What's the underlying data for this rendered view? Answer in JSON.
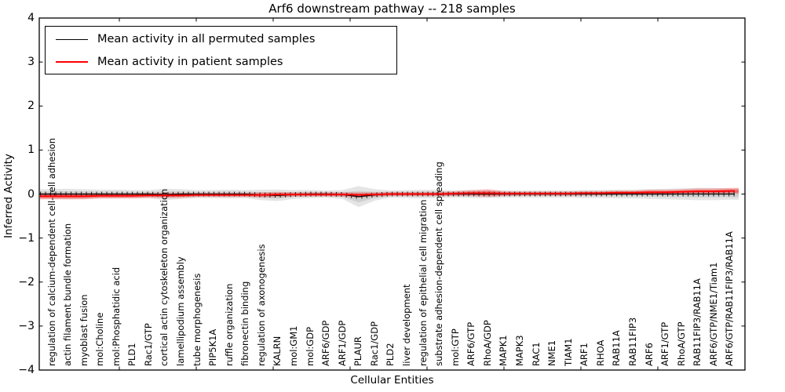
{
  "title": "Arf6 downstream pathway -- 218 samples",
  "legend": {
    "items": [
      {
        "label": "Mean activity in all permuted samples",
        "color": "#000000"
      },
      {
        "label": "Mean activity in patient samples",
        "color": "#ff0000"
      }
    ]
  },
  "axes": {
    "ylabel": "Inferred Activity",
    "xlabel": "Cellular Entities",
    "ytick_labels": [
      "4",
      "3",
      "2",
      "1",
      "0",
      "−1",
      "−2",
      "−3",
      "−4"
    ],
    "ytick_values": [
      4,
      3,
      2,
      1,
      0,
      -1,
      -2,
      -3,
      -4
    ]
  },
  "chart_data": {
    "type": "line",
    "title": "Arf6 downstream pathway -- 218 samples",
    "xlabel": "Cellular Entities",
    "ylabel": "Inferred Activity",
    "ylim": [
      -4,
      4
    ],
    "grid": false,
    "legend_position": "upper left",
    "categories": [
      "regulation of calcium-dependent cell-cell adhesion",
      "actin filament bundle formation",
      "myoblast fusion",
      "mol:Choline",
      "mol:Phosphatidic acid",
      "PLD1",
      "Rac1/GTP",
      "cortical actin cytoskeleton organization",
      "lamellipodium assembly",
      "tube morphogenesis",
      "PIP5K1A",
      "ruffle organization",
      "fibronectin binding",
      "regulation of axonogenesis",
      "KALRN",
      "mol:GM1",
      "mol:GDP",
      "ARF6/GDP",
      "ARF1/GDP",
      "PLAUR",
      "Rac1/GDP",
      "PLD2",
      "liver development",
      "regulation of epithelial cell migration",
      "substrate adhesion-dependent cell spreading",
      "mol:GTP",
      "ARF6/GTP",
      "RhoA/GDP",
      "MAPK1",
      "MAPK3",
      "RAC1",
      "NME1",
      "TIAM1",
      "ARF1",
      "RHOA",
      "RAB11A",
      "RAB11FIP3",
      "ARF6",
      "ARF1/GTP",
      "RhoA/GTP",
      "RAB11FIP3/RAB11A",
      "ARF6/GTP/NME1/Tiam1",
      "ARF6/GTP/RAB11FIP3/RAB11A"
    ],
    "series": [
      {
        "name": "Mean activity in all permuted samples",
        "color": "#000000",
        "values": [
          0,
          0,
          0,
          0,
          0,
          0,
          0,
          -0.01,
          0,
          0,
          0,
          0,
          0,
          -0.02,
          -0.03,
          -0.01,
          0,
          0,
          -0.01,
          -0.06,
          -0.02,
          0,
          0,
          0,
          0,
          0,
          0,
          0,
          0,
          0,
          0,
          0,
          0,
          0,
          0,
          0,
          0,
          0,
          0,
          0,
          0,
          0,
          0
        ]
      },
      {
        "name": "Mean activity in patient samples",
        "color": "#ff0000",
        "values": [
          -0.05,
          -0.05,
          -0.05,
          -0.04,
          -0.04,
          -0.04,
          -0.03,
          -0.03,
          -0.03,
          -0.02,
          -0.02,
          -0.02,
          -0.02,
          -0.02,
          -0.01,
          -0.01,
          -0.01,
          -0.01,
          -0.01,
          -0.02,
          -0.01,
          0,
          0,
          0,
          0,
          0.01,
          0.02,
          0.02,
          0.01,
          0.01,
          0.01,
          0.01,
          0.01,
          0.02,
          0.02,
          0.03,
          0.03,
          0.04,
          0.04,
          0.05,
          0.06,
          0.06,
          0.07
        ]
      }
    ],
    "bands": [
      {
        "name": "permuted-activity-spread",
        "center_series": 0,
        "color_outer": "rgba(0,0,0,0.10)",
        "color_inner": "rgba(0,0,0,0.09)",
        "halfwidths": [
          0.11,
          0.12,
          0.11,
          0.1,
          0.1,
          0.09,
          0.09,
          0.13,
          0.11,
          0.09,
          0.09,
          0.1,
          0.09,
          0.12,
          0.13,
          0.1,
          0.09,
          0.08,
          0.1,
          0.24,
          0.13,
          0.08,
          0.09,
          0.1,
          0.09,
          0.08,
          0.09,
          0.09,
          0.08,
          0.08,
          0.08,
          0.08,
          0.08,
          0.09,
          0.09,
          0.1,
          0.1,
          0.11,
          0.12,
          0.13,
          0.14,
          0.14,
          0.13
        ]
      },
      {
        "name": "patient-activity-spread",
        "center_series": 1,
        "color_outer": "rgba(255,0,0,0.22)",
        "color_inner": "rgba(255,0,0,0.35)",
        "halfwidths": [
          0.07,
          0.07,
          0.07,
          0.06,
          0.06,
          0.06,
          0.06,
          0.06,
          0.06,
          0.05,
          0.05,
          0.05,
          0.05,
          0.06,
          0.06,
          0.05,
          0.05,
          0.05,
          0.05,
          0.06,
          0.05,
          0.05,
          0.05,
          0.05,
          0.05,
          0.06,
          0.07,
          0.09,
          0.06,
          0.05,
          0.05,
          0.05,
          0.05,
          0.05,
          0.05,
          0.05,
          0.05,
          0.06,
          0.06,
          0.06,
          0.07,
          0.07,
          0.07
        ]
      }
    ]
  }
}
